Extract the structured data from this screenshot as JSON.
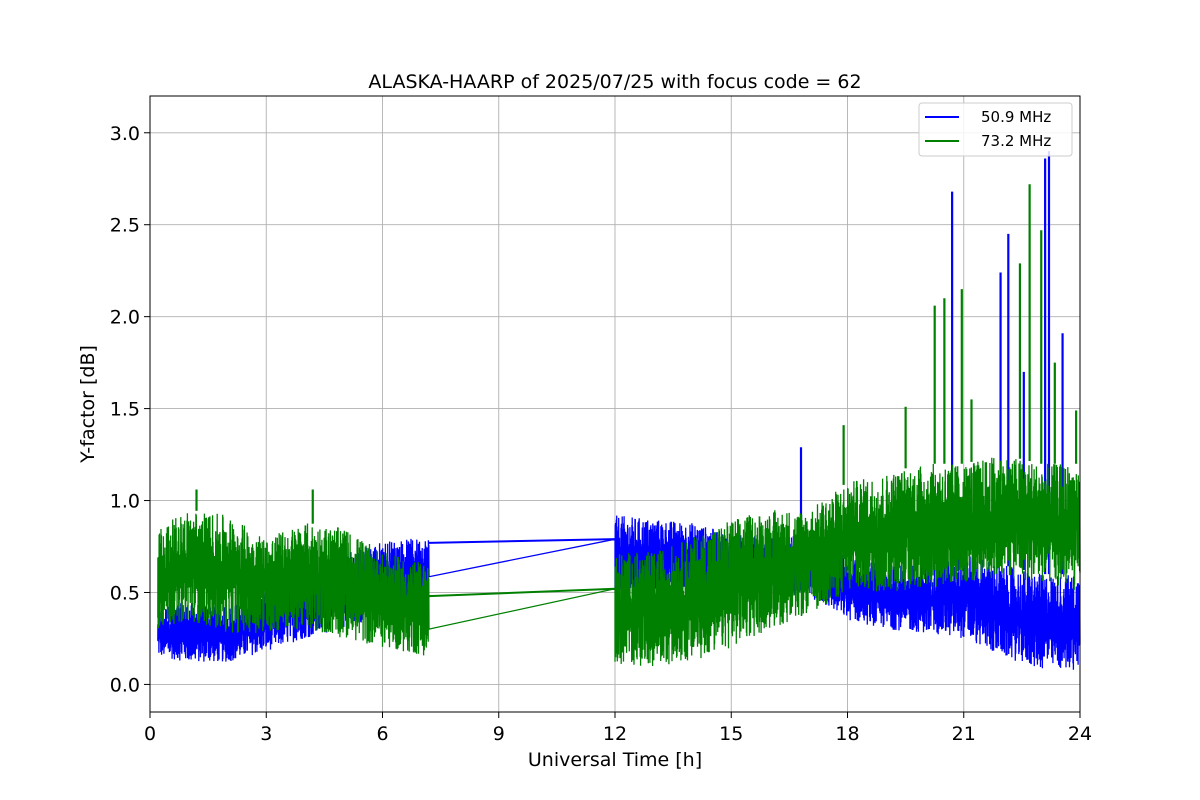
{
  "chart_data": {
    "type": "line",
    "title": "ALASKA-HAARP of 2025/07/25 with focus code = 62",
    "xlabel": "Universal Time [h]",
    "ylabel": "Y-factor [dB]",
    "xlim": [
      0,
      24
    ],
    "ylim": [
      -0.15,
      3.2
    ],
    "xticks": [
      0,
      3,
      6,
      9,
      12,
      15,
      18,
      21,
      24
    ],
    "yticks": [
      0.0,
      0.5,
      1.0,
      1.5,
      2.0,
      2.5,
      3.0
    ],
    "ytick_labels": [
      "0.0",
      "0.5",
      "1.0",
      "1.5",
      "2.0",
      "2.5",
      "3.0"
    ],
    "grid": true,
    "legend_position": "top-right",
    "series": [
      {
        "name": "50.9 MHz",
        "color": "#0000ff",
        "envelope": {
          "x": [
            0.2,
            1,
            2,
            3,
            4,
            5,
            6,
            7.2,
            12,
            13,
            14,
            15,
            16,
            17,
            18,
            19,
            20,
            21,
            22,
            23,
            24
          ],
          "low": [
            0.15,
            0.12,
            0.12,
            0.18,
            0.25,
            0.3,
            0.38,
            0.45,
            0.45,
            0.5,
            0.5,
            0.5,
            0.5,
            0.48,
            0.35,
            0.3,
            0.28,
            0.25,
            0.15,
            0.08,
            0.08
          ],
          "high": [
            0.42,
            0.45,
            0.42,
            0.5,
            0.62,
            0.72,
            0.78,
            0.8,
            0.92,
            0.9,
            0.88,
            0.82,
            0.8,
            0.82,
            0.7,
            0.65,
            0.65,
            0.72,
            0.65,
            0.6,
            0.6
          ]
        },
        "gap": {
          "x": [
            7.2,
            12
          ],
          "y": [
            0.77,
            0.79
          ]
        },
        "spikes": [
          {
            "x": 16.8,
            "y": 1.29
          },
          {
            "x": 20.7,
            "y": 2.68
          },
          {
            "x": 21.95,
            "y": 2.24
          },
          {
            "x": 22.15,
            "y": 2.45
          },
          {
            "x": 22.55,
            "y": 1.7
          },
          {
            "x": 23.1,
            "y": 2.86
          },
          {
            "x": 23.2,
            "y": 2.9
          },
          {
            "x": 23.55,
            "y": 1.91
          }
        ]
      },
      {
        "name": "73.2 MHz",
        "color": "#008000",
        "envelope": {
          "x": [
            0.2,
            1,
            2,
            3,
            4,
            5,
            6,
            7.2,
            12,
            13,
            14,
            15,
            16,
            17,
            18,
            19,
            20,
            21,
            22,
            23,
            24
          ],
          "low": [
            0.3,
            0.35,
            0.28,
            0.28,
            0.3,
            0.25,
            0.2,
            0.15,
            0.1,
            0.1,
            0.12,
            0.2,
            0.3,
            0.38,
            0.5,
            0.5,
            0.52,
            0.55,
            0.58,
            0.55,
            0.5
          ],
          "high": [
            0.85,
            0.95,
            0.92,
            0.8,
            0.88,
            0.85,
            0.72,
            0.65,
            0.72,
            0.72,
            0.8,
            0.9,
            0.95,
            0.95,
            1.1,
            1.15,
            1.2,
            1.2,
            1.25,
            1.2,
            1.2
          ]
        },
        "gap": {
          "x": [
            7.2,
            12
          ],
          "y": [
            0.48,
            0.52
          ]
        },
        "spikes": [
          {
            "x": 1.2,
            "y": 1.06
          },
          {
            "x": 4.2,
            "y": 1.06
          },
          {
            "x": 17.9,
            "y": 1.41
          },
          {
            "x": 19.5,
            "y": 1.51
          },
          {
            "x": 20.25,
            "y": 2.06
          },
          {
            "x": 20.5,
            "y": 2.1
          },
          {
            "x": 20.95,
            "y": 2.15
          },
          {
            "x": 21.2,
            "y": 1.55
          },
          {
            "x": 22.45,
            "y": 2.29
          },
          {
            "x": 22.7,
            "y": 2.72
          },
          {
            "x": 23.0,
            "y": 2.47
          },
          {
            "x": 23.35,
            "y": 1.75
          },
          {
            "x": 23.9,
            "y": 1.49
          }
        ]
      }
    ]
  }
}
